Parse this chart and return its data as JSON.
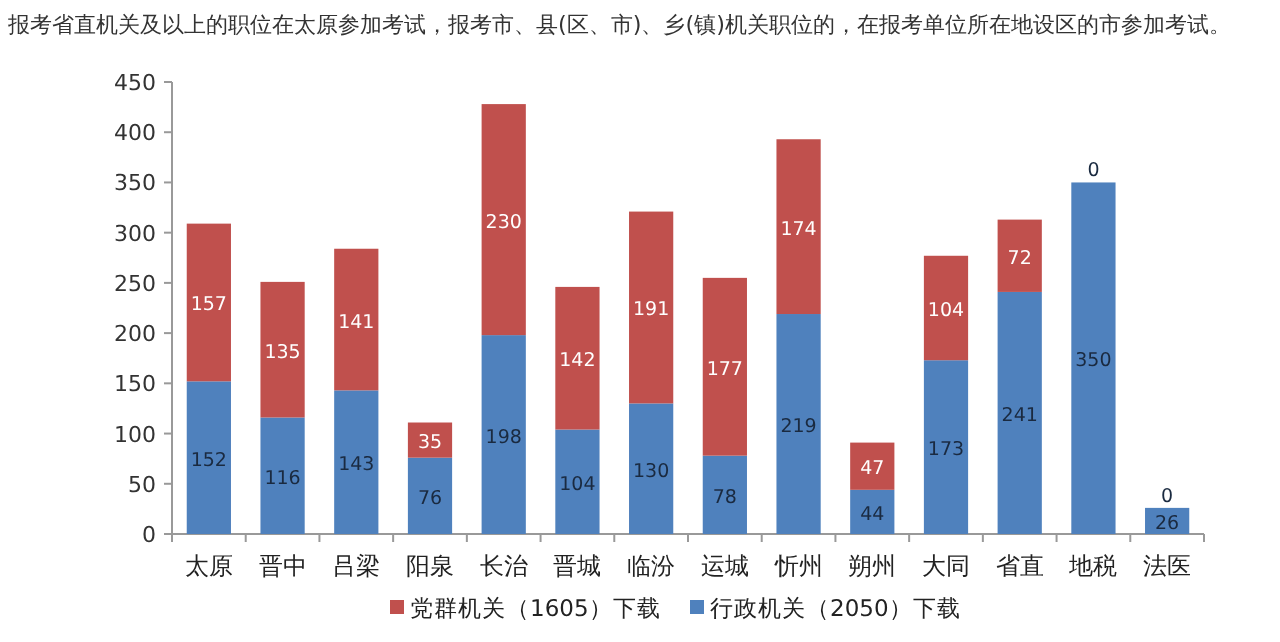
{
  "chart_data": {
    "type": "bar",
    "stacked": true,
    "title": "报考省直机关及以上的职位在太原参加考试，报考市、县(区、市)、乡(镇)机关职位的，在报考单位所在地设区的市参加考试。",
    "categories": [
      "太原",
      "晋中",
      "吕梁",
      "阳泉",
      "长治",
      "晋城",
      "临汾",
      "运城",
      "忻州",
      "朔州",
      "大同",
      "省直",
      "地税",
      "法医"
    ],
    "series": [
      {
        "name": "行政机关（2050）下载",
        "color": "#4f81bd",
        "values": [
          152,
          116,
          143,
          76,
          198,
          104,
          130,
          78,
          219,
          44,
          173,
          241,
          350,
          26
        ]
      },
      {
        "name": "党群机关（1605）下载",
        "color": "#c0504d",
        "values": [
          157,
          135,
          141,
          35,
          230,
          142,
          191,
          177,
          174,
          47,
          104,
          72,
          0,
          0
        ]
      }
    ],
    "ylim": [
      0,
      450
    ],
    "yticks": [
      0,
      50,
      100,
      150,
      200,
      250,
      300,
      350,
      400,
      450
    ],
    "grid": false,
    "legend": "bottom",
    "data_labels": true
  }
}
